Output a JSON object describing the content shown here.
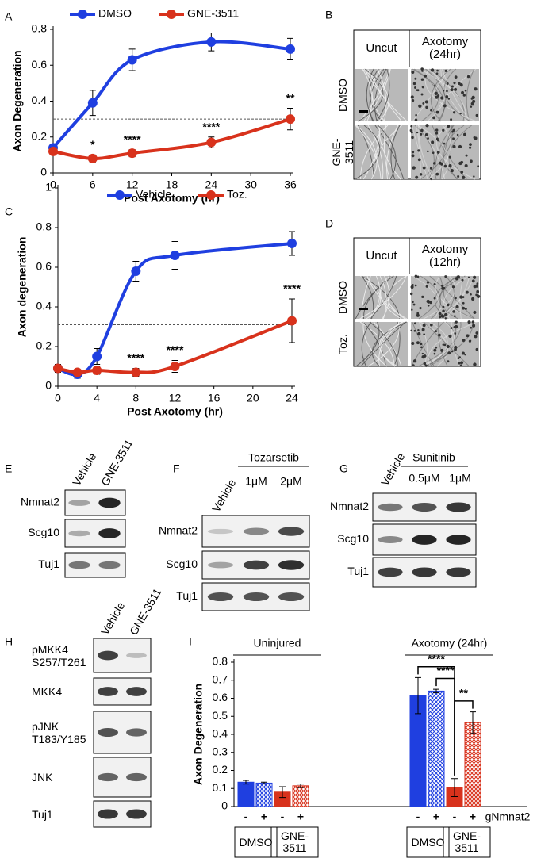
{
  "chart_data": [
    {
      "type": "line",
      "panel": "A",
      "y_label": "Axon Degeneration",
      "x_label": "Post Axotomy (hr)",
      "x": [
        0,
        6,
        12,
        24,
        36
      ],
      "xlim": [
        0,
        36
      ],
      "xticks": [
        0,
        6,
        12,
        18,
        24,
        30,
        36
      ],
      "ylim": [
        0,
        0.8
      ],
      "yticks": [
        0,
        0.2,
        0.4,
        0.6,
        0.8
      ],
      "reference_line": 0.3,
      "legend": "top-left",
      "series": [
        {
          "name": "DMSO",
          "color": "#1f3fe0",
          "values": [
            0.14,
            0.39,
            0.63,
            0.73,
            0.69
          ],
          "errors": [
            0.02,
            0.07,
            0.06,
            0.05,
            0.06
          ]
        },
        {
          "name": "GNE-3511",
          "color": "#d8321c",
          "values": [
            0.12,
            0.08,
            0.11,
            0.17,
            0.3
          ],
          "errors": [
            0.02,
            0.02,
            0.02,
            0.03,
            0.06
          ]
        }
      ],
      "annotations": [
        {
          "x": 6,
          "text": "*"
        },
        {
          "x": 12,
          "text": "****"
        },
        {
          "x": 24,
          "text": "****"
        },
        {
          "x": 36,
          "text": "**"
        }
      ]
    },
    {
      "type": "line",
      "panel": "C",
      "y_label": "Axon degeneration",
      "x_label": "Post Axotomy (hr)",
      "x": [
        0,
        2,
        4,
        8,
        12,
        24
      ],
      "xlim": [
        0,
        24
      ],
      "xticks": [
        0,
        4,
        8,
        12,
        16,
        20,
        24
      ],
      "ylim": [
        0,
        1
      ],
      "yticks": [
        0,
        0.2,
        0.4,
        0.6,
        0.8,
        1
      ],
      "reference_line": 0.31,
      "legend": "top-left",
      "series": [
        {
          "name": "Vehicle",
          "color": "#1f3fe0",
          "values": [
            0.09,
            0.06,
            0.15,
            0.58,
            0.66,
            0.72
          ],
          "errors": [
            0.02,
            0.02,
            0.04,
            0.05,
            0.07,
            0.06
          ]
        },
        {
          "name": "Toz.",
          "color": "#d8321c",
          "values": [
            0.09,
            0.07,
            0.08,
            0.07,
            0.1,
            0.33
          ],
          "errors": [
            0.02,
            0.01,
            0.02,
            0.02,
            0.03,
            0.11
          ]
        }
      ],
      "annotations": [
        {
          "x": 8,
          "text": "****"
        },
        {
          "x": 12,
          "text": "****"
        },
        {
          "x": 24,
          "text": "****"
        }
      ]
    },
    {
      "type": "bar",
      "panel": "I",
      "y_label": "Axon Degeneration",
      "x_label": "gNmnat2",
      "categories": [
        "-",
        "+",
        "-",
        "+",
        "-",
        "+",
        "-",
        "+"
      ],
      "values": [
        0.135,
        0.13,
        0.08,
        0.115,
        0.615,
        0.64,
        0.105,
        0.465
      ],
      "errors": [
        0.01,
        0.005,
        0.03,
        0.01,
        0.1,
        0.01,
        0.05,
        0.06
      ],
      "colors": [
        "#1f3fe0",
        "#1f3fe0",
        "#d8321c",
        "#d8321c",
        "#1f3fe0",
        "#1f3fe0",
        "#d8321c",
        "#d8321c"
      ],
      "hatched": [
        false,
        true,
        false,
        true,
        false,
        true,
        false,
        true
      ],
      "ylim": [
        0,
        0.8
      ],
      "yticks": [
        0,
        0.1,
        0.2,
        0.3,
        0.4,
        0.5,
        0.6,
        0.7,
        0.8
      ],
      "groups": [
        "Uninjured",
        "Axotomy (24hr)"
      ],
      "treatments": [
        "DMSO",
        "GNE-3511",
        "DMSO",
        "GNE-3511"
      ],
      "comparisons": [
        {
          "label": "****",
          "bars": [
            4,
            6
          ]
        },
        {
          "label": "****",
          "bars": [
            5,
            6
          ]
        },
        {
          "label": "**",
          "bars": [
            6,
            7
          ]
        }
      ]
    }
  ],
  "figure": {
    "panel_labels": [
      "A",
      "B",
      "C",
      "D",
      "E",
      "F",
      "G",
      "H",
      "I"
    ],
    "B": {
      "columns": [
        "Uncut",
        "Axotomy (24hr)"
      ],
      "rows": [
        "DMSO",
        "GNE-3511"
      ]
    },
    "D": {
      "columns": [
        "Uncut",
        "Axotomy (12hr)"
      ],
      "rows": [
        "DMSO",
        "Toz."
      ]
    },
    "E": {
      "lanes": [
        "Vehicle",
        "GNE-3511"
      ],
      "rows": [
        "Nmnat2",
        "Scg10",
        "Tuj1"
      ]
    },
    "F": {
      "drug": "Tozarsetib",
      "lanes": [
        "Vehicle",
        "1μM",
        "2μM"
      ],
      "rows": [
        "Nmnat2",
        "Scg10",
        "Tuj1"
      ]
    },
    "G": {
      "drug": "Sunitinib",
      "lanes": [
        "Vehicle",
        "0.5μM",
        "1μM"
      ],
      "rows": [
        "Nmnat2",
        "Scg10",
        "Tuj1"
      ]
    },
    "H": {
      "lanes": [
        "Vehicle",
        "GNE-3511"
      ],
      "rows": [
        "pMKK4 S257/T261",
        "MKK4",
        "pJNK T183/Y185",
        "JNK",
        "Tuj1"
      ]
    }
  }
}
